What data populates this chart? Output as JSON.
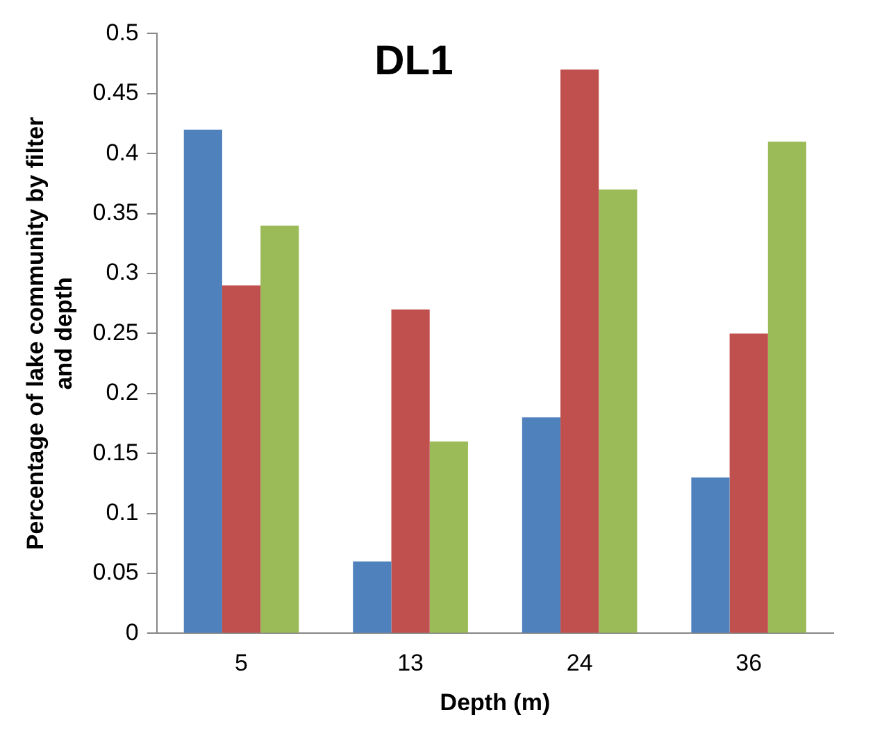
{
  "chart_data": {
    "type": "bar",
    "title": "DL1",
    "xlabel": "Depth (m)",
    "ylabel": "Percentage of lake community by filter\nand depth",
    "categories": [
      "5",
      "13",
      "24",
      "36"
    ],
    "series": [
      {
        "color": "#4f81bd",
        "values": [
          0.42,
          0.06,
          0.18,
          0.13
        ]
      },
      {
        "color": "#c0504d",
        "values": [
          0.29,
          0.27,
          0.47,
          0.25
        ]
      },
      {
        "color": "#9bbb59",
        "values": [
          0.34,
          0.16,
          0.37,
          0.41
        ]
      }
    ],
    "ylim": [
      0,
      0.5
    ],
    "yticks": [
      0,
      0.05,
      0.1,
      0.15,
      0.2,
      0.25,
      0.3,
      0.35,
      0.4,
      0.45,
      0.5
    ],
    "grid": false,
    "legend": false
  }
}
